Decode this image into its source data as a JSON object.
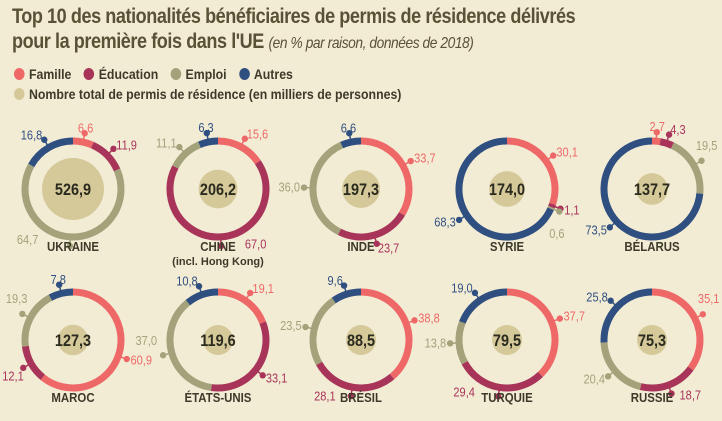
{
  "title_line1": "Top 10 des nationalités bénéficiaires de permis de résidence délivrés",
  "title_line2": "pour la première fois dans l'UE",
  "subtitle": "(en % par raison, données de 2018)",
  "legend": {
    "items": [
      {
        "label": "Famille",
        "color": "#ee6868"
      },
      {
        "label": "Éducation",
        "color": "#a8345a"
      },
      {
        "label": "Emploi",
        "color": "#a3a27b"
      },
      {
        "label": "Autres",
        "color": "#2f4f80"
      }
    ],
    "total_label": "Nombre total de permis de résidence (en milliers de personnes)",
    "total_color": "#d5c99a"
  },
  "chart_data": {
    "type": "pie",
    "variant": "donut",
    "series_names": [
      "Famille",
      "Éducation",
      "Emploi",
      "Autres"
    ],
    "total_unit": "milliers de personnes",
    "countries": [
      {
        "name": "UKRAINE",
        "sub": "",
        "total": "526,9",
        "values": [
          6.6,
          11.9,
          64.7,
          16.8
        ],
        "labels": [
          "6,6",
          "11,9",
          "64,7",
          "16,8"
        ]
      },
      {
        "name": "CHINE",
        "sub": "(incl. Hong Kong)",
        "total": "206,2",
        "values": [
          15.6,
          67.0,
          11.1,
          6.3
        ],
        "labels": [
          "15,6",
          "67,0",
          "11,1",
          "6,3"
        ]
      },
      {
        "name": "INDE",
        "sub": "",
        "total": "197,3",
        "values": [
          33.7,
          23.7,
          36.0,
          6.6
        ],
        "labels": [
          "33,7",
          "23,7",
          "36,0",
          "6,6"
        ]
      },
      {
        "name": "SYRIE",
        "sub": "",
        "total": "174,0",
        "values": [
          30.1,
          1.1,
          0.6,
          68.3
        ],
        "labels": [
          "30,1",
          "1,1",
          "0,6",
          "68,3"
        ]
      },
      {
        "name": "BÉLARUS",
        "sub": "",
        "total": "137,7",
        "values": [
          2.7,
          4.3,
          19.5,
          73.5
        ],
        "labels": [
          "2,7",
          "4,3",
          "19,5",
          "73,5"
        ]
      },
      {
        "name": "MAROC",
        "sub": "",
        "total": "127,3",
        "values": [
          60.9,
          12.1,
          19.3,
          7.8
        ],
        "labels": [
          "60,9",
          "12,1",
          "19,3",
          "7,8"
        ]
      },
      {
        "name": "ÉTATS-UNIS",
        "sub": "",
        "total": "119,6",
        "values": [
          19.1,
          33.1,
          37.0,
          10.8
        ],
        "labels": [
          "19,1",
          "33,1",
          "37,0",
          "10,8"
        ]
      },
      {
        "name": "BRÉSIL",
        "sub": "",
        "total": "88,5",
        "values": [
          38.8,
          28.1,
          23.5,
          9.6
        ],
        "labels": [
          "38,8",
          "28,1",
          "23,5",
          "9,6"
        ]
      },
      {
        "name": "TURQUIE",
        "sub": "",
        "total": "79,5",
        "values": [
          37.7,
          29.4,
          13.8,
          19.0
        ],
        "labels": [
          "37,7",
          "29,4",
          "13,8",
          "19,0"
        ]
      },
      {
        "name": "RUSSIE",
        "sub": "",
        "total": "75,3",
        "values": [
          35.1,
          18.7,
          20.4,
          25.8
        ],
        "labels": [
          "35,1",
          "18,7",
          "20,4",
          "25,8"
        ]
      }
    ]
  }
}
